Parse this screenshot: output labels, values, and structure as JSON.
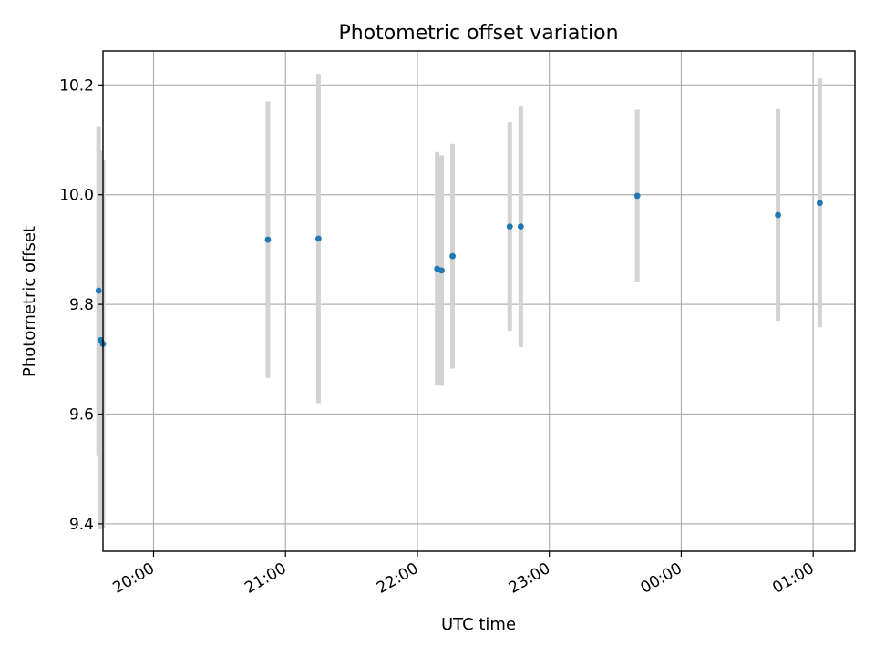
{
  "chart_data": {
    "type": "scatter",
    "title": "Photometric offset variation",
    "xlabel": "UTC time",
    "ylabel": "Photometric offset",
    "xlim": [
      "19:37",
      "01:19"
    ],
    "ylim": [
      9.35,
      10.262
    ],
    "grid": true,
    "x_ticks": [
      "20:00",
      "21:00",
      "22:00",
      "23:00",
      "00:00",
      "01:00"
    ],
    "y_ticks": [
      9.4,
      9.6,
      9.8,
      10.0,
      10.2
    ],
    "colors": {
      "point": "#1f77b4",
      "errorbar": "#d3d3d3"
    },
    "points": [
      {
        "x": "19:35",
        "y": 9.825,
        "err": 0.3
      },
      {
        "x": "19:36",
        "y": 9.735,
        "err": 0.345
      },
      {
        "x": "19:37",
        "y": 9.728,
        "err": 0.335
      },
      {
        "x": "20:52",
        "y": 9.918,
        "err": 0.252
      },
      {
        "x": "21:15",
        "y": 9.92,
        "err": 0.3
      },
      {
        "x": "22:09",
        "y": 9.865,
        "err": 0.213
      },
      {
        "x": "22:11",
        "y": 9.862,
        "err": 0.21
      },
      {
        "x": "22:16",
        "y": 9.888,
        "err": 0.205
      },
      {
        "x": "22:42",
        "y": 9.942,
        "err": 0.19
      },
      {
        "x": "22:47",
        "y": 9.942,
        "err": 0.22
      },
      {
        "x": "23:40",
        "y": 9.998,
        "err": 0.157
      },
      {
        "x": "00:44",
        "y": 9.963,
        "err": 0.193
      },
      {
        "x": "01:03",
        "y": 9.985,
        "err": 0.227
      }
    ]
  }
}
